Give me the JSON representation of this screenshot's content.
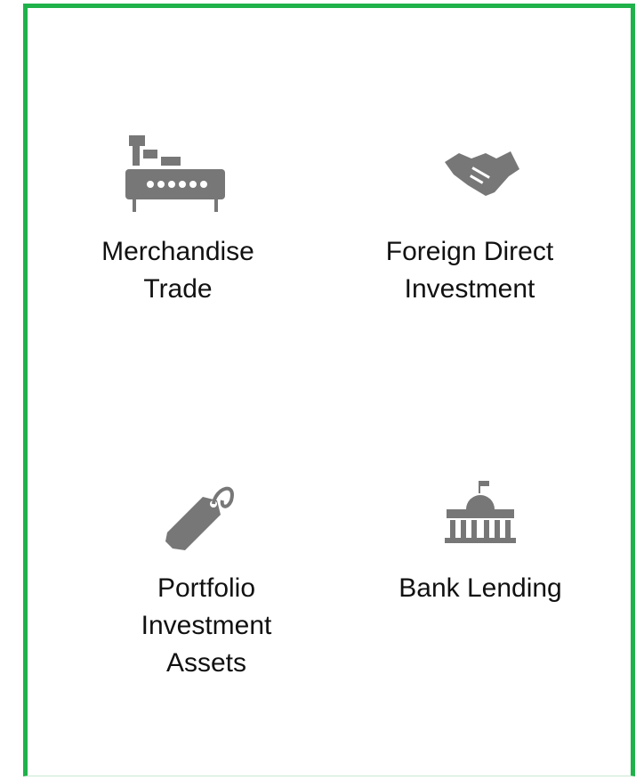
{
  "tiles": [
    {
      "label_lines": [
        "Merchandise",
        "Trade"
      ]
    },
    {
      "label_lines": [
        "Foreign Direct",
        "Investment"
      ]
    },
    {
      "label_lines": [
        "Portfolio",
        "Investment",
        "Assets"
      ]
    },
    {
      "label_lines": [
        "Bank Lending"
      ]
    }
  ]
}
